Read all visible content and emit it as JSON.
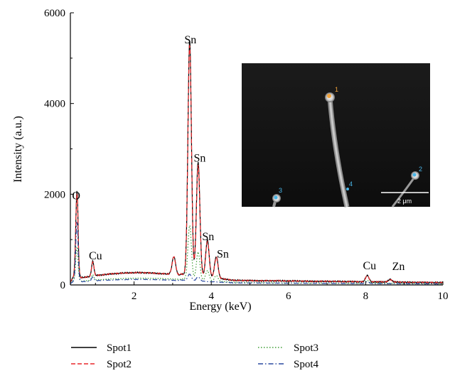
{
  "chart_data": {
    "type": "line",
    "xlabel": "Energy (keV)",
    "ylabel": "Intensity (a.u.)",
    "xlim": [
      0.35,
      10
    ],
    "ylim": [
      0,
      6000
    ],
    "x_ticks": [
      2,
      4,
      6,
      8,
      10
    ],
    "y_ticks": [
      0,
      2000,
      4000,
      6000
    ],
    "grid": false,
    "legend_position": "bottom",
    "series": [
      {
        "name": "Spot1",
        "color": "#000000",
        "dash": "solid",
        "peaks": [
          [
            0.52,
            1760
          ],
          [
            0.93,
            330
          ],
          [
            3.03,
            400
          ],
          [
            3.44,
            5200
          ],
          [
            3.66,
            2520
          ],
          [
            3.9,
            820
          ],
          [
            4.13,
            480
          ],
          [
            8.04,
            140
          ],
          [
            8.63,
            60
          ]
        ]
      },
      {
        "name": "Spot2",
        "color": "#e8272a",
        "dash": "dashed",
        "peaks": [
          [
            0.52,
            1700
          ],
          [
            0.93,
            320
          ],
          [
            3.03,
            390
          ],
          [
            3.44,
            5100
          ],
          [
            3.66,
            2450
          ],
          [
            3.9,
            790
          ],
          [
            4.13,
            460
          ],
          [
            8.04,
            130
          ],
          [
            8.63,
            55
          ]
        ]
      },
      {
        "name": "Spot3",
        "color": "#3f9e35",
        "dash": "dotted",
        "peaks": [
          [
            0.52,
            650
          ],
          [
            0.93,
            120
          ],
          [
            3.44,
            1200
          ],
          [
            3.66,
            620
          ],
          [
            3.9,
            220
          ],
          [
            4.13,
            130
          ],
          [
            8.04,
            60
          ]
        ]
      },
      {
        "name": "Spot4",
        "color": "#2a4aa0",
        "dash": "dashdot",
        "peaks": [
          [
            0.52,
            1250
          ],
          [
            0.93,
            90
          ],
          [
            3.44,
            140
          ],
          [
            3.66,
            90
          ],
          [
            8.04,
            40
          ]
        ]
      }
    ],
    "annotations": [
      {
        "text": "O",
        "x": 0.5,
        "y": 1760
      },
      {
        "text": "Cu",
        "x": 1.0,
        "y": 440
      },
      {
        "text": "Sn",
        "x": 3.46,
        "y": 5200
      },
      {
        "text": "Sn",
        "x": 3.7,
        "y": 2590
      },
      {
        "text": "Sn",
        "x": 3.92,
        "y": 860
      },
      {
        "text": "Sn",
        "x": 4.3,
        "y": 480
      },
      {
        "text": "Cu",
        "x": 8.1,
        "y": 220
      },
      {
        "text": "Zn",
        "x": 8.85,
        "y": 200
      }
    ],
    "inset": {
      "spots": [
        "1",
        "2",
        "3",
        "4"
      ],
      "scale_bar": "2 μm"
    }
  }
}
